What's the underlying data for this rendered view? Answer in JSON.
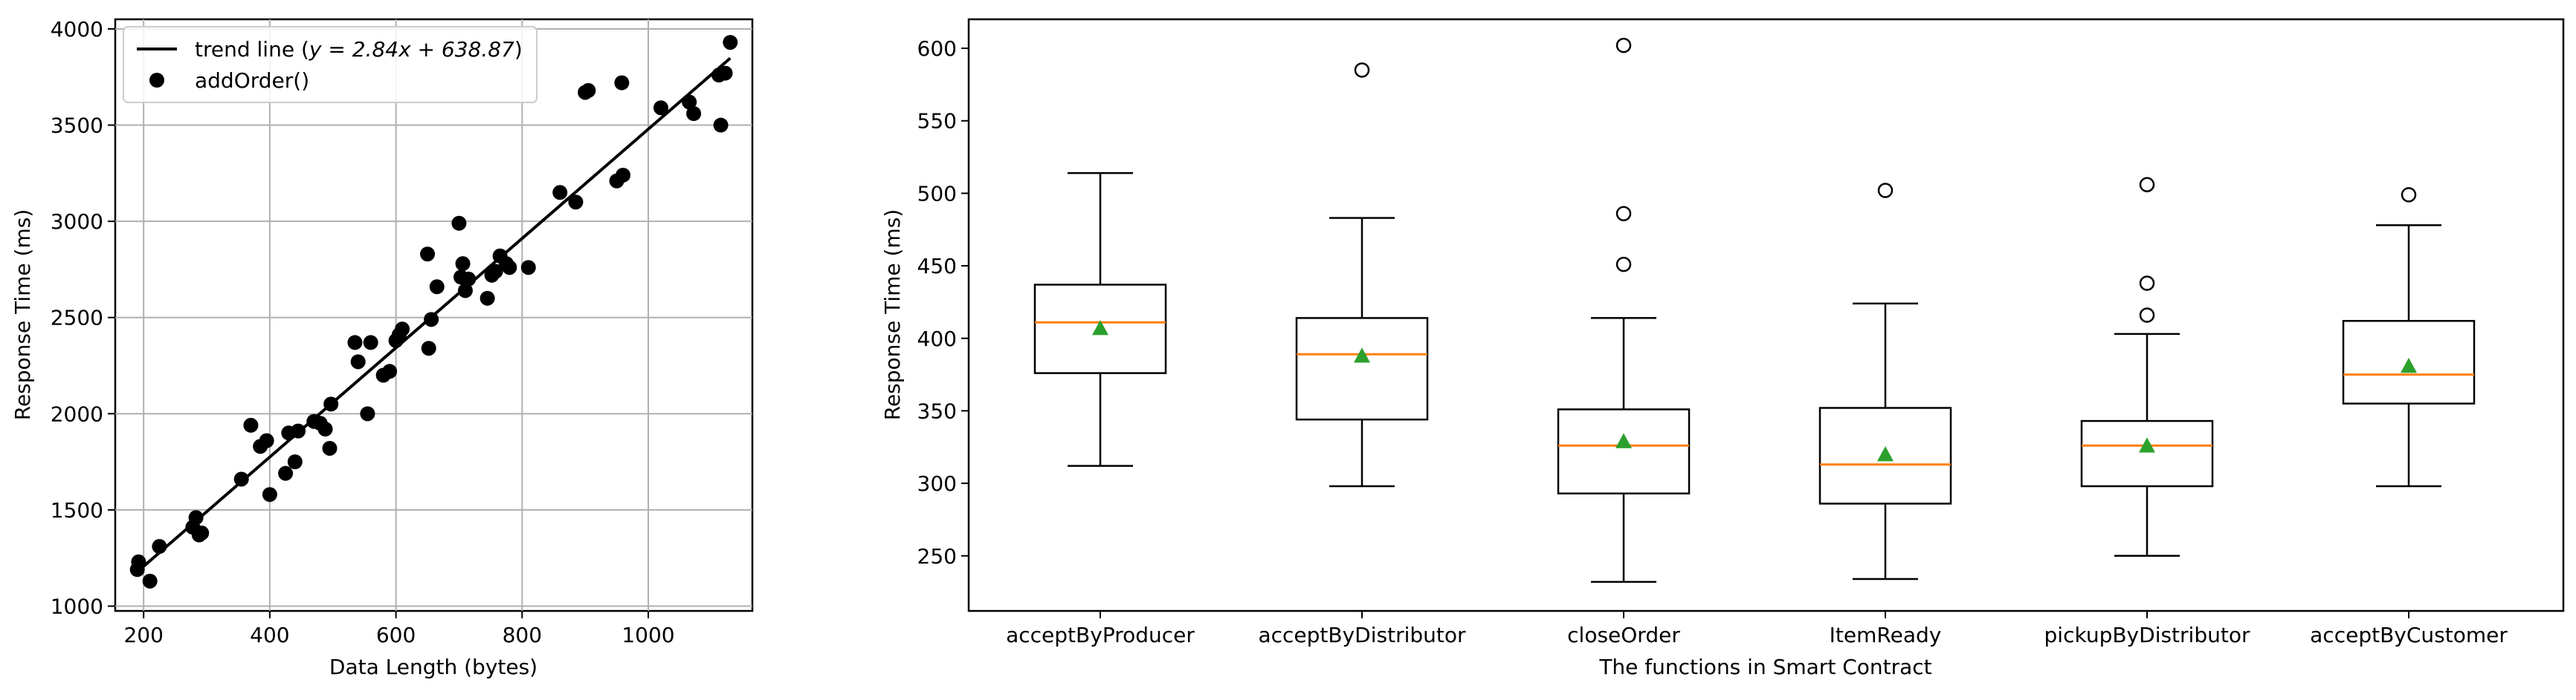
{
  "chart_data": [
    {
      "type": "scatter",
      "xlabel": "Data Length (bytes)",
      "ylabel": "Response Time (ms)",
      "xlim": [
        155,
        1165
      ],
      "ylim": [
        975,
        4050
      ],
      "xticks": [
        200,
        400,
        600,
        800,
        1000
      ],
      "yticks": [
        1000,
        1500,
        2000,
        2500,
        3000,
        3500,
        4000
      ],
      "grid": true,
      "legend_position": "top-left",
      "trend_line": {
        "label": "trend line ($y = 2.84x + 638.87$)",
        "label_prefix": "trend line (",
        "label_formula": "y = 2.84x + 638.87",
        "label_suffix": ")",
        "slope": 2.84,
        "intercept": 638.87,
        "x_range": [
          190,
          1130
        ]
      },
      "series": [
        {
          "name": "addOrder()",
          "points": [
            [
              190,
              1190
            ],
            [
              192,
              1230
            ],
            [
              210,
              1130
            ],
            [
              225,
              1310
            ],
            [
              278,
              1410
            ],
            [
              283,
              1460
            ],
            [
              288,
              1370
            ],
            [
              292,
              1380
            ],
            [
              355,
              1660
            ],
            [
              370,
              1940
            ],
            [
              385,
              1830
            ],
            [
              395,
              1860
            ],
            [
              400,
              1580
            ],
            [
              425,
              1690
            ],
            [
              430,
              1900
            ],
            [
              440,
              1750
            ],
            [
              445,
              1910
            ],
            [
              470,
              1960
            ],
            [
              480,
              1950
            ],
            [
              488,
              1920
            ],
            [
              495,
              1820
            ],
            [
              497,
              2050
            ],
            [
              535,
              2370
            ],
            [
              540,
              2270
            ],
            [
              555,
              2000
            ],
            [
              560,
              2370
            ],
            [
              580,
              2200
            ],
            [
              590,
              2220
            ],
            [
              600,
              2380
            ],
            [
              605,
              2410
            ],
            [
              610,
              2440
            ],
            [
              650,
              2830
            ],
            [
              652,
              2340
            ],
            [
              656,
              2490
            ],
            [
              665,
              2660
            ],
            [
              700,
              2990
            ],
            [
              703,
              2710
            ],
            [
              706,
              2780
            ],
            [
              710,
              2640
            ],
            [
              715,
              2700
            ],
            [
              745,
              2600
            ],
            [
              752,
              2720
            ],
            [
              758,
              2740
            ],
            [
              765,
              2820
            ],
            [
              775,
              2780
            ],
            [
              780,
              2760
            ],
            [
              810,
              2760
            ],
            [
              860,
              3150
            ],
            [
              885,
              3100
            ],
            [
              900,
              3670
            ],
            [
              905,
              3680
            ],
            [
              950,
              3210
            ],
            [
              958,
              3720
            ],
            [
              960,
              3240
            ],
            [
              1020,
              3590
            ],
            [
              1065,
              3620
            ],
            [
              1072,
              3560
            ],
            [
              1112,
              3760
            ],
            [
              1115,
              3500
            ],
            [
              1122,
              3770
            ],
            [
              1130,
              3930
            ]
          ]
        }
      ]
    },
    {
      "type": "box",
      "xlabel": "The functions in Smart Contract",
      "ylabel": "Response Time (ms)",
      "ylim": [
        212,
        620
      ],
      "yticks": [
        250,
        300,
        350,
        400,
        450,
        500,
        550,
        600
      ],
      "grid": false,
      "categories": [
        "acceptByProducer",
        "acceptByDistributor",
        "closeOrder",
        "ItemReady",
        "pickupByDistributor",
        "acceptByCustomer"
      ],
      "boxes": [
        {
          "name": "acceptByProducer",
          "whisker_low": 312,
          "q1": 376,
          "median": 411,
          "q3": 437,
          "whisker_high": 514,
          "mean": 407,
          "outliers": []
        },
        {
          "name": "acceptByDistributor",
          "whisker_low": 298,
          "q1": 344,
          "median": 389,
          "q3": 414,
          "whisker_high": 483,
          "mean": 388,
          "outliers": [
            585
          ]
        },
        {
          "name": "closeOrder",
          "whisker_low": 232,
          "q1": 293,
          "median": 326,
          "q3": 351,
          "whisker_high": 414,
          "mean": 329,
          "outliers": [
            451,
            486,
            602
          ]
        },
        {
          "name": "ItemReady",
          "whisker_low": 234,
          "q1": 286,
          "median": 313,
          "q3": 352,
          "whisker_high": 424,
          "mean": 320,
          "outliers": [
            502
          ]
        },
        {
          "name": "pickupByDistributor",
          "whisker_low": 250,
          "q1": 298,
          "median": 326,
          "q3": 343,
          "whisker_high": 403,
          "mean": 326,
          "outliers": [
            416,
            438,
            506
          ]
        },
        {
          "name": "acceptByCustomer",
          "whisker_low": 298,
          "q1": 355,
          "median": 375,
          "q3": 412,
          "whisker_high": 478,
          "mean": 381,
          "outliers": [
            499
          ]
        }
      ],
      "colors": {
        "median": "#ff7f0e",
        "mean": "#2ca02c",
        "box": "#000000"
      }
    }
  ]
}
